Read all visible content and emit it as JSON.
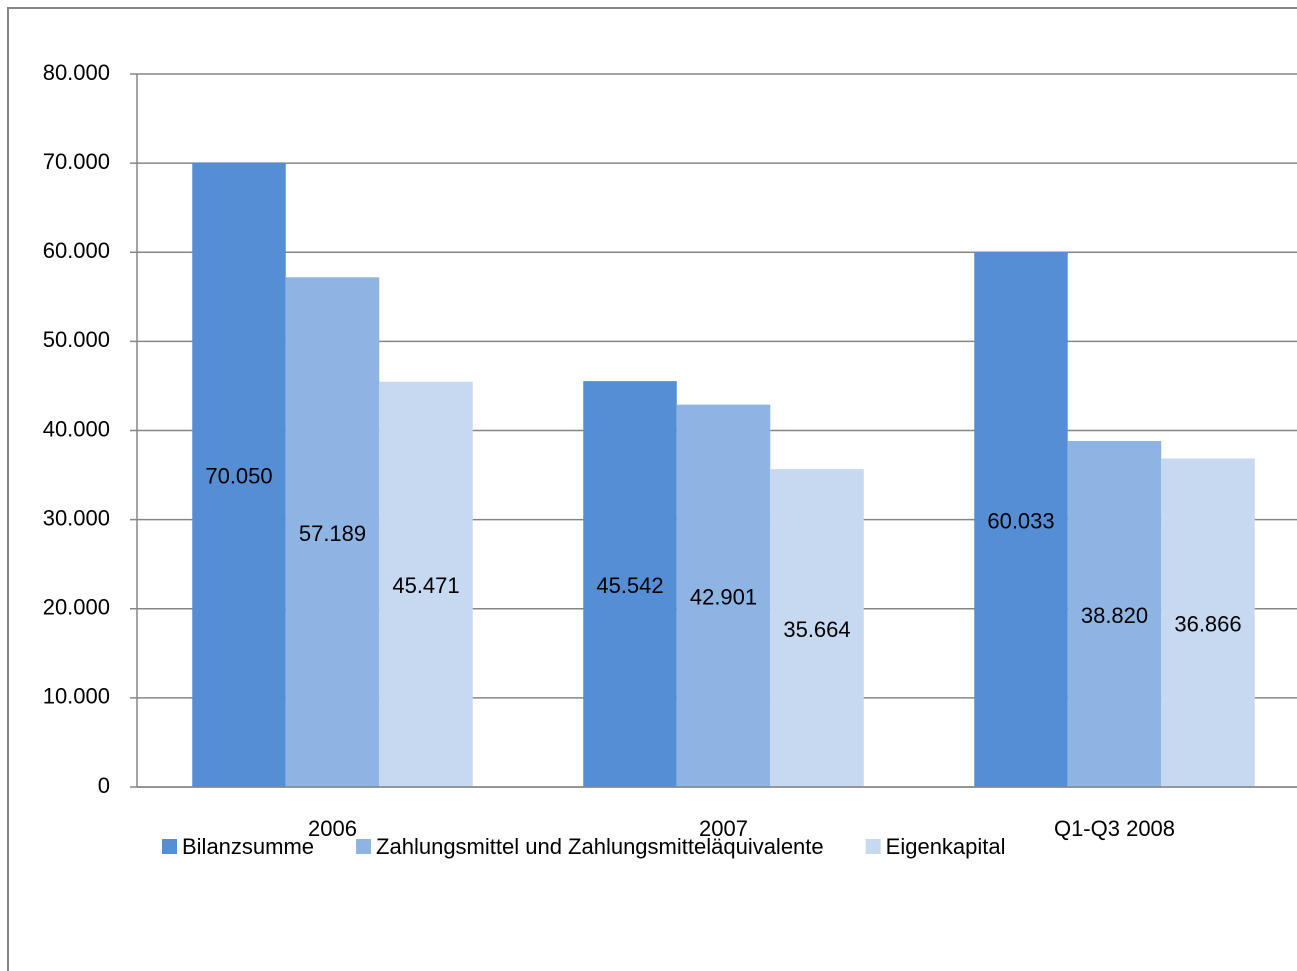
{
  "chart_data": {
    "type": "bar",
    "categories": [
      "2006",
      "2007",
      "Q1-Q3 2008"
    ],
    "series": [
      {
        "name": "Bilanzsumme",
        "color": "#558ed5",
        "values": [
          70050,
          45542,
          60033
        ],
        "value_labels": [
          "70.050",
          "45.542",
          "60.033"
        ]
      },
      {
        "name": "Zahlungsmittel und Zahlungsmitteläquivalente",
        "color": "#8eb4e3",
        "values": [
          57189,
          42901,
          38820
        ],
        "value_labels": [
          "57.189",
          "42.901",
          "38.820"
        ]
      },
      {
        "name": "Eigenkapital",
        "color": "#c6d9f1",
        "values": [
          45471,
          35664,
          36866
        ],
        "value_labels": [
          "45.471",
          "35.664",
          "36.866"
        ]
      }
    ],
    "ylim": [
      0,
      80000
    ],
    "yticks": [
      0,
      {
        "value": 10000,
        "label": "10.000"
      },
      {
        "value": 20000,
        "label": "20.000"
      },
      {
        "value": 30000,
        "label": "30.000"
      },
      {
        "value": 40000,
        "label": "40.000"
      },
      {
        "value": 50000,
        "label": "50.000"
      },
      {
        "value": 60000,
        "label": "60.000"
      },
      {
        "value": 70000,
        "label": "70.000"
      },
      {
        "value": 80000,
        "label": "80.000"
      }
    ],
    "grid": true,
    "legend": "bottom"
  }
}
